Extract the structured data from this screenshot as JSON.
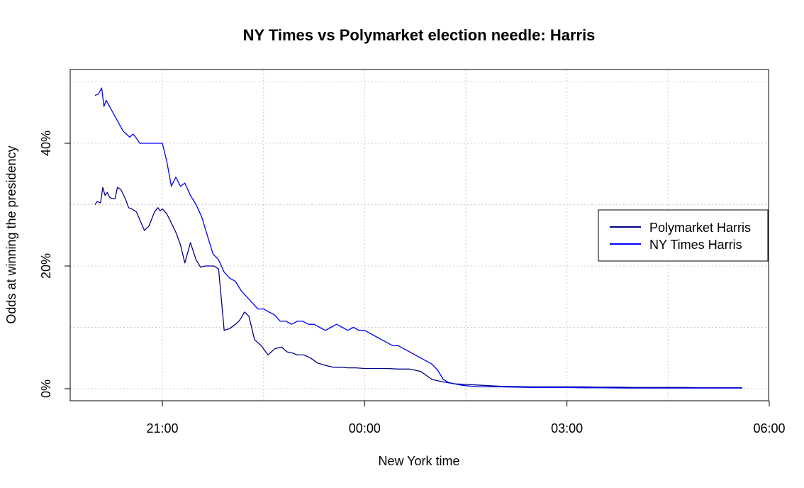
{
  "chart_data": {
    "type": "line",
    "title": "NY Times vs Polymarket election needle: Harris",
    "xlabel": "New York time",
    "ylabel": "Odds at winning the presidency",
    "x_ticks": [
      "21:00",
      "00:00",
      "03:00",
      "06:00"
    ],
    "y_ticks": [
      "0%",
      "20%",
      "40%"
    ],
    "xlim": [
      "19:56",
      "06:00"
    ],
    "ylim": [
      0,
      50
    ],
    "grid": true,
    "legend_position": "right",
    "series": [
      {
        "name": "Polymarket Harris",
        "color": "#00008B",
        "x": [
          "20:00",
          "20:02",
          "20:05",
          "20:07",
          "20:09",
          "20:11",
          "20:13",
          "20:15",
          "20:18",
          "20:20",
          "20:23",
          "20:27",
          "20:30",
          "20:33",
          "20:37",
          "20:40",
          "20:44",
          "20:48",
          "20:53",
          "20:56",
          "20:58",
          "21:00",
          "21:04",
          "21:08",
          "21:12",
          "21:16",
          "21:20",
          "21:25",
          "21:30",
          "21:34",
          "21:38",
          "21:42",
          "21:46",
          "21:50",
          "21:55",
          "22:00",
          "22:05",
          "22:08",
          "22:10",
          "22:13",
          "22:17",
          "22:22",
          "22:28",
          "22:34",
          "22:40",
          "22:46",
          "22:51",
          "22:56",
          "23:00",
          "23:06",
          "23:12",
          "23:18",
          "23:25",
          "23:32",
          "23:39",
          "23:45",
          "23:52",
          "00:00",
          "00:10",
          "00:20",
          "00:30",
          "00:40",
          "00:50",
          "01:00",
          "01:05",
          "01:10",
          "01:20",
          "01:30",
          "01:40",
          "01:50",
          "02:00",
          "02:15",
          "02:30",
          "02:45",
          "03:00",
          "03:15",
          "03:30",
          "03:45",
          "04:00",
          "04:15",
          "04:30",
          "04:45",
          "05:00",
          "05:15",
          "05:30",
          "05:36"
        ],
        "values": [
          30,
          30.5,
          30.3,
          32.8,
          31.5,
          32,
          31.2,
          31,
          31,
          32.8,
          32.5,
          31,
          29.5,
          29.3,
          28.8,
          27.5,
          25.8,
          26.5,
          28.8,
          29.5,
          29,
          29.3,
          28.5,
          27,
          25.5,
          23.5,
          20.5,
          23.8,
          21,
          19.8,
          20,
          20,
          20,
          19.5,
          9.5,
          9.8,
          10.5,
          11,
          11.5,
          12.5,
          11.8,
          8,
          7,
          5.5,
          6.5,
          6.8,
          6,
          5.8,
          5.5,
          5.5,
          5,
          4.2,
          3.8,
          3.5,
          3.5,
          3.4,
          3.4,
          3.3,
          3.3,
          3.3,
          3.2,
          3.2,
          2.8,
          1.5,
          1.3,
          1.1,
          0.8,
          0.7,
          0.6,
          0.5,
          0.4,
          0.35,
          0.3,
          0.3,
          0.3,
          0.3,
          0.25,
          0.25,
          0.2,
          0.2,
          0.2,
          0.2,
          0.15,
          0.15,
          0.15,
          0.15
        ]
      },
      {
        "name": "NY Times Harris",
        "color": "#0000FF",
        "x": [
          "20:00",
          "20:03",
          "20:06",
          "20:08",
          "20:10",
          "20:13",
          "20:16",
          "20:19",
          "20:22",
          "20:25",
          "20:28",
          "20:31",
          "20:34",
          "20:37",
          "20:40",
          "20:44",
          "20:48",
          "20:52",
          "20:56",
          "21:00",
          "21:04",
          "21:08",
          "21:12",
          "21:16",
          "21:20",
          "21:25",
          "21:30",
          "21:35",
          "21:40",
          "21:45",
          "21:50",
          "21:55",
          "22:00",
          "22:05",
          "22:10",
          "22:15",
          "22:20",
          "22:25",
          "22:30",
          "22:35",
          "22:40",
          "22:45",
          "22:50",
          "22:55",
          "23:00",
          "23:05",
          "23:10",
          "23:15",
          "23:20",
          "23:25",
          "23:30",
          "23:35",
          "23:40",
          "23:45",
          "23:50",
          "23:55",
          "00:00",
          "00:05",
          "00:10",
          "00:15",
          "00:20",
          "00:25",
          "00:30",
          "00:35",
          "00:40",
          "00:45",
          "00:50",
          "00:55",
          "01:00",
          "01:05",
          "01:10",
          "01:15",
          "01:20",
          "01:25",
          "01:30",
          "01:35",
          "01:45",
          "02:00",
          "02:15",
          "02:30",
          "02:45",
          "03:00",
          "03:15",
          "03:30",
          "03:45",
          "04:00",
          "04:15",
          "04:30",
          "04:45",
          "05:00",
          "05:15",
          "05:30",
          "05:36"
        ],
        "values": [
          47.8,
          48,
          49,
          46,
          47,
          46,
          45,
          44,
          43,
          42,
          41.5,
          41,
          41.5,
          40.8,
          40,
          40,
          40,
          40,
          40,
          40,
          37,
          33,
          34.5,
          33,
          33.5,
          31.5,
          30,
          28,
          25,
          22,
          21,
          19,
          18,
          17.5,
          16,
          15,
          14,
          13,
          13,
          12.5,
          12,
          11,
          11,
          10.5,
          11,
          11,
          10.5,
          10.5,
          10,
          9.5,
          10,
          10.5,
          10,
          9.5,
          10,
          9.5,
          9.5,
          9,
          8.5,
          8,
          7.5,
          7,
          7,
          6.5,
          6,
          5.5,
          5,
          4.5,
          4,
          3,
          1.5,
          1,
          0.8,
          0.6,
          0.5,
          0.4,
          0.3,
          0.3,
          0.25,
          0.2,
          0.2,
          0.2,
          0.15,
          0.15,
          0.12,
          0.1,
          0.1,
          0.1,
          0.1,
          0.1,
          0.1,
          0.1,
          0.1
        ]
      }
    ]
  }
}
